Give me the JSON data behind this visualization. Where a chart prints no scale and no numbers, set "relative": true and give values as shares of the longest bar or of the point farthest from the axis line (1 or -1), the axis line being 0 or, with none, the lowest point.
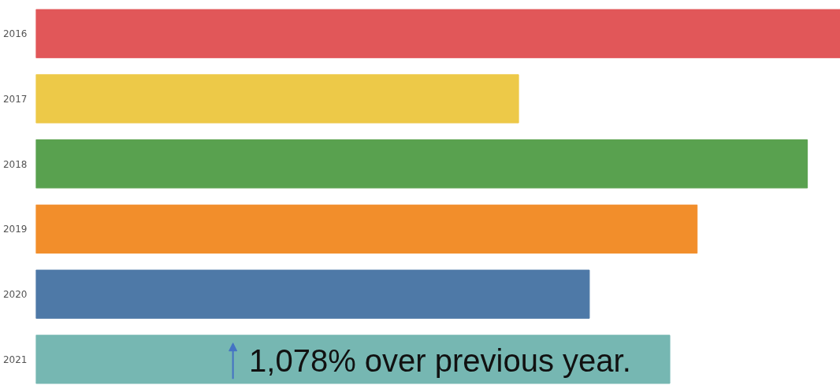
{
  "chart_data": {
    "type": "bar",
    "orientation": "horizontal",
    "relative": true,
    "categories": [
      "2016",
      "2017",
      "2018",
      "2019",
      "2020",
      "2021"
    ],
    "values": [
      1,
      0.6,
      0.959,
      0.822,
      0.688,
      0.788
    ],
    "colors": [
      "#e15759",
      "#edc948",
      "#59a14f",
      "#f28e2b",
      "#4e79a7",
      "#76b7b2"
    ],
    "annotations": [
      "1,078% over previous year."
    ],
    "grid": false
  }
}
